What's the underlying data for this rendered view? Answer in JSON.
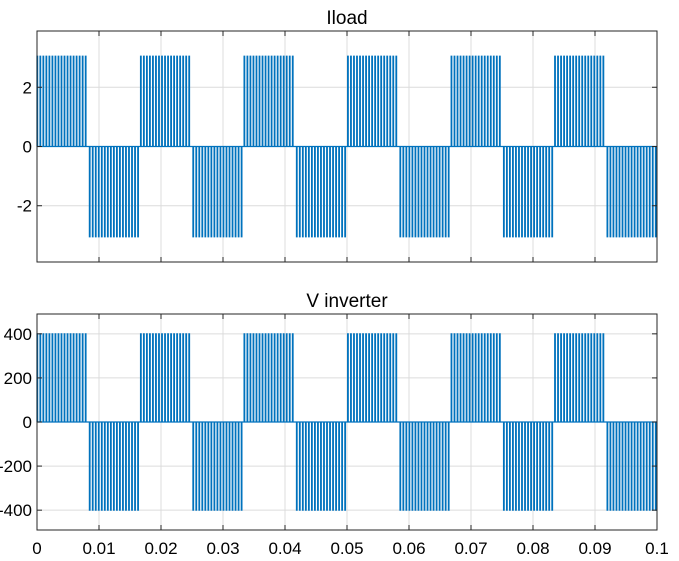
{
  "chart_data": [
    {
      "type": "line",
      "title": "Iload",
      "xlabel": "",
      "ylabel": "",
      "xlim": [
        0,
        0.1
      ],
      "ylim": [
        -3.9,
        3.9
      ],
      "x_ticks": [
        0,
        0.01,
        0.02,
        0.03,
        0.04,
        0.05,
        0.06,
        0.07,
        0.08,
        0.09,
        0.1
      ],
      "y_ticks": [
        -2,
        0,
        2
      ],
      "y_tick_labels": [
        "-2",
        "0",
        "2"
      ],
      "x_tick_labels_shown": false,
      "grid": true,
      "color": "#0072BD",
      "series": [
        {
          "waveform": "unipolar PWM pulse train, half-cycles alternate positive/negative",
          "amplitude": 3.05,
          "period": 0.0167,
          "first_positive_half_start": 0,
          "pulse_count_per_half": 17,
          "values": [
            0,
            3.05,
            0,
            -3.05,
            0,
            3.05,
            0,
            -3.05,
            0,
            3.05,
            0,
            -3.05
          ]
        }
      ]
    },
    {
      "type": "line",
      "title": "V inverter",
      "xlabel": "",
      "ylabel": "",
      "xlim": [
        0,
        0.1
      ],
      "ylim": [
        -490,
        490
      ],
      "x_ticks": [
        0,
        0.01,
        0.02,
        0.03,
        0.04,
        0.05,
        0.06,
        0.07,
        0.08,
        0.09,
        0.1
      ],
      "x_tick_labels": [
        "0",
        "0.01",
        "0.02",
        "0.03",
        "0.04",
        "0.05",
        "0.06",
        "0.07",
        "0.08",
        "0.09",
        "0.1"
      ],
      "y_ticks": [
        -400,
        -200,
        0,
        200,
        400
      ],
      "y_tick_labels": [
        "-400",
        "-200",
        "0",
        "200",
        "400"
      ],
      "grid": true,
      "color": "#0072BD",
      "series": [
        {
          "waveform": "unipolar PWM pulse train, half-cycles alternate positive/negative",
          "amplitude": 400,
          "period": 0.0167,
          "first_positive_half_start": 0,
          "pulse_count_per_half": 17,
          "values": [
            0,
            400,
            0,
            -400,
            0,
            400,
            0,
            -400,
            0,
            400,
            0,
            -400
          ]
        }
      ]
    }
  ]
}
